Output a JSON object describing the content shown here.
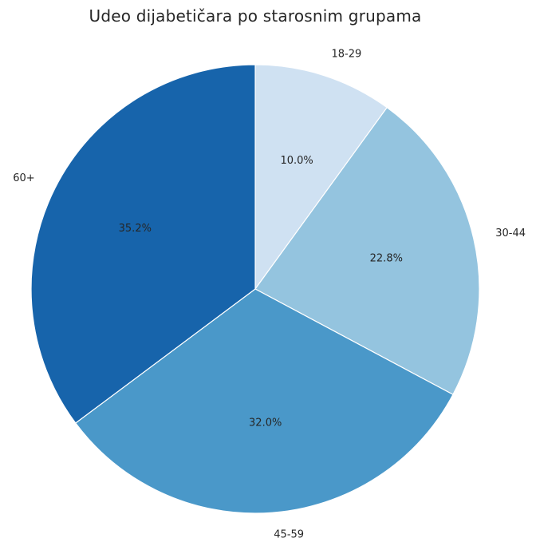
{
  "chart_data": {
    "type": "pie",
    "title": "Udeo dijabetičara po starosnim grupama",
    "categories": [
      "18-29",
      "30-44",
      "45-59",
      "60+"
    ],
    "values": [
      10.0,
      22.8,
      32.0,
      35.2
    ],
    "value_labels": [
      "10.0%",
      "22.8%",
      "32.0%",
      "35.2%"
    ],
    "colors": [
      "#cfe1f2",
      "#94c4df",
      "#4a98c9",
      "#1764ab"
    ],
    "start_angle_deg": 90,
    "direction": "clockwise",
    "legend": "none"
  }
}
